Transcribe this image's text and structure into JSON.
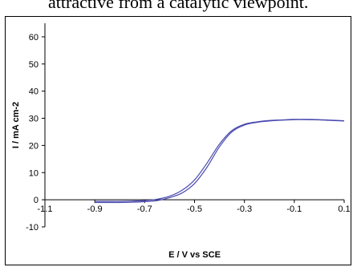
{
  "caption_snippet": "attractive from a catalytic viewpoint.",
  "chart_data": {
    "type": "line",
    "xlabel": "E / V vs SCE",
    "ylabel": "I / mA cm-2",
    "xlim": [
      -1.1,
      0.1
    ],
    "ylim": [
      -10,
      65
    ],
    "x_ticks": [
      "-1.1",
      "-0.9",
      "-0.7",
      "-0.5",
      "-0.3",
      "-0.1",
      "0.1"
    ],
    "y_ticks": [
      "-10",
      "0",
      "10",
      "20",
      "30",
      "40",
      "50",
      "60"
    ],
    "colors": {
      "series": "#4a4ab0",
      "axis": "#000000"
    },
    "series": [
      {
        "x": [
          -0.9,
          -0.85,
          -0.8,
          -0.75,
          -0.7,
          -0.65,
          -0.6,
          -0.55,
          -0.5,
          -0.45,
          -0.4,
          -0.35,
          -0.3,
          -0.25,
          -0.2,
          -0.15,
          -0.1,
          -0.05,
          0.0,
          0.05,
          0.1
        ],
        "y": [
          -1.0,
          -1.0,
          -1.0,
          -0.9,
          -0.7,
          -0.3,
          0.8,
          2.5,
          6.0,
          12.0,
          19.5,
          25.0,
          27.5,
          28.5,
          29.0,
          29.3,
          29.5,
          29.5,
          29.4,
          29.2,
          29.0
        ]
      },
      {
        "x": [
          -0.9,
          -0.85,
          -0.8,
          -0.75,
          -0.7,
          -0.65,
          -0.6,
          -0.55,
          -0.5,
          -0.45,
          -0.4,
          -0.35,
          -0.3,
          -0.25,
          -0.2,
          -0.15,
          -0.1,
          -0.05,
          0.0,
          0.05,
          0.1
        ],
        "y": [
          -0.6,
          -0.6,
          -0.6,
          -0.5,
          -0.3,
          0.2,
          1.3,
          3.5,
          7.3,
          13.5,
          20.5,
          25.5,
          27.8,
          28.7,
          29.2,
          29.4,
          29.6,
          29.6,
          29.5,
          29.3,
          29.1
        ]
      }
    ]
  }
}
